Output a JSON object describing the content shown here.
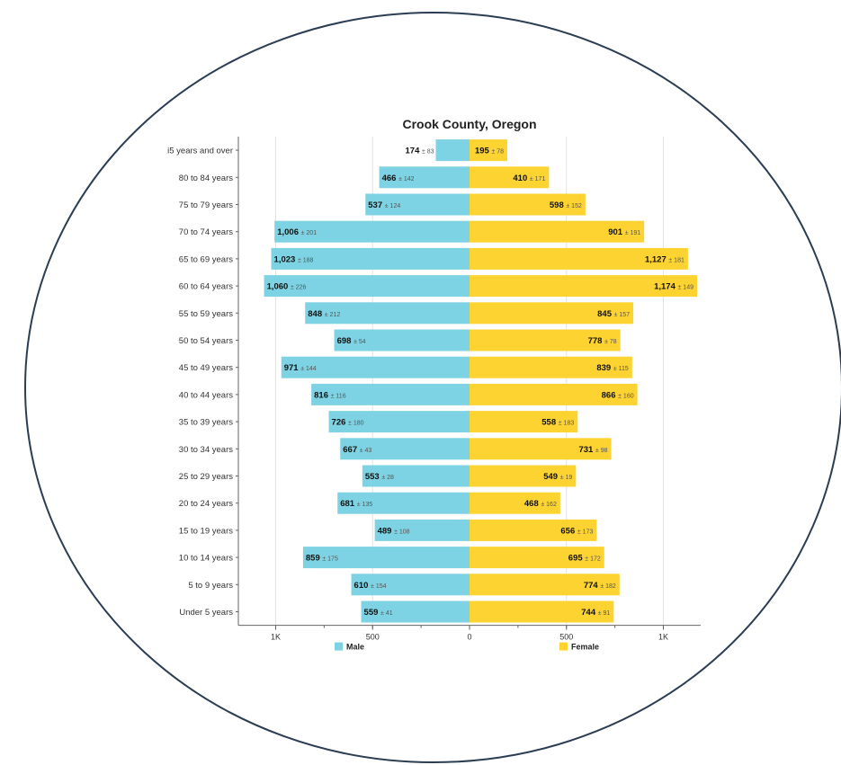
{
  "chart_data": {
    "type": "bar",
    "orientation": "horizontal",
    "subtype": "population-pyramid",
    "title": "Crook County, Oregon",
    "categories": [
      "i5 years and over",
      "80 to 84 years",
      "75 to 79 years",
      "70 to 74 years",
      "65 to 69 years",
      "60 to 64 years",
      "55 to 59 years",
      "50 to 54 years",
      "45 to 49 years",
      "40 to 44 years",
      "35 to 39 years",
      "30 to 34 years",
      "25 to 29 years",
      "20 to 24 years",
      "15 to 19 years",
      "10 to 14 years",
      "5 to 9 years",
      "Under 5 years"
    ],
    "series": [
      {
        "name": "Male",
        "color": "#7dd3e3",
        "values": [
          174,
          466,
          537,
          1006,
          1023,
          1060,
          848,
          698,
          971,
          816,
          726,
          667,
          553,
          681,
          489,
          859,
          610,
          559
        ],
        "labels": [
          "174",
          "466",
          "537",
          "1,006",
          "1,023",
          "1,060",
          "848",
          "698",
          "971",
          "816",
          "726",
          "667",
          "553",
          "681",
          "489",
          "859",
          "610",
          "559"
        ],
        "moe": [
          "± 83",
          "± 142",
          "± 124",
          "± 201",
          "± 188",
          "± 226",
          "± 212",
          "± 54",
          "± 144",
          "± 116",
          "± 180",
          "± 43",
          "± 28",
          "± 135",
          "± 108",
          "± 175",
          "± 154",
          "± 41"
        ]
      },
      {
        "name": "Female",
        "color": "#fdd332",
        "values": [
          195,
          410,
          598,
          901,
          1127,
          1174,
          845,
          778,
          839,
          866,
          558,
          731,
          549,
          468,
          656,
          695,
          774,
          744
        ],
        "labels": [
          "195",
          "410",
          "598",
          "901",
          "1,127",
          "1,174",
          "845",
          "778",
          "839",
          "866",
          "558",
          "731",
          "549",
          "468",
          "656",
          "695",
          "774",
          "744"
        ],
        "moe": [
          "± 78",
          "± 171",
          "± 152",
          "± 191",
          "± 181",
          "± 149",
          "± 157",
          "± 78",
          "± 115",
          "± 160",
          "± 183",
          "± 98",
          "± 19",
          "± 162",
          "± 173",
          "± 172",
          "± 182",
          "± 91"
        ]
      }
    ],
    "x_ticks": [
      {
        "value": -1000,
        "label": "1K"
      },
      {
        "value": -500,
        "label": "500"
      },
      {
        "value": 0,
        "label": "0"
      },
      {
        "value": 500,
        "label": "500"
      },
      {
        "value": 1000,
        "label": "1K"
      }
    ],
    "xlim": [
      -1200,
      1200
    ],
    "grid": true,
    "legend_position": "bottom"
  },
  "colors": {
    "frame_stroke": "#2b3d52",
    "grid": "#e3e3e3",
    "axis": "#666666"
  }
}
